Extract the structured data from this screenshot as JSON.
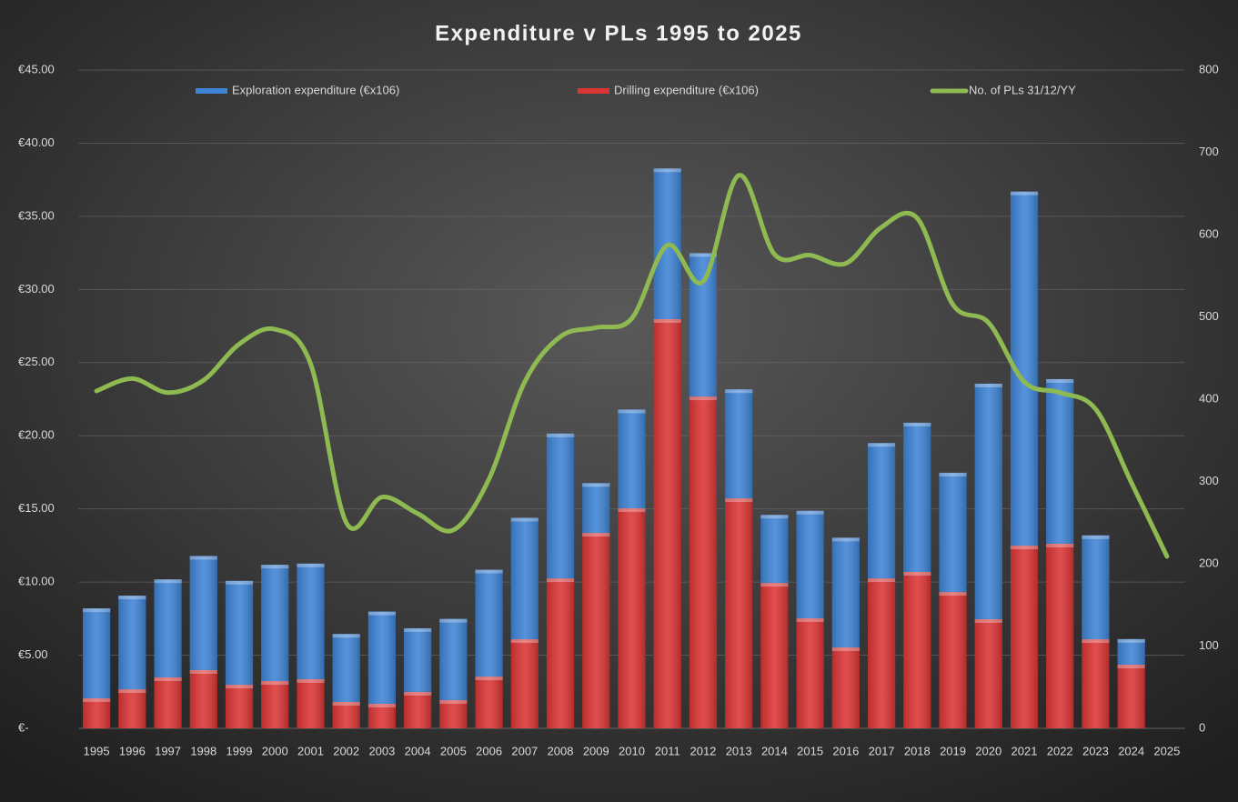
{
  "chart_data": {
    "type": "bar",
    "title": "Expenditure v PLs 1995 to 2025",
    "categories": [
      "1995",
      "1996",
      "1997",
      "1998",
      "1999",
      "2000",
      "2001",
      "2002",
      "2003",
      "2004",
      "2005",
      "2006",
      "2007",
      "2008",
      "2009",
      "2010",
      "2011",
      "2012",
      "2013",
      "2014",
      "2015",
      "2016",
      "2017",
      "2018",
      "2019",
      "2020",
      "2021",
      "2022",
      "2023",
      "2024",
      "2025"
    ],
    "series": [
      {
        "name": "Exploration expenditure (€x106)",
        "type": "bar",
        "color": "#3f84d6",
        "values": [
          6.15,
          6.4,
          6.7,
          7.8,
          7.1,
          7.95,
          7.9,
          4.65,
          6.3,
          4.35,
          5.55,
          7.3,
          8.3,
          9.9,
          3.4,
          6.75,
          10.3,
          9.8,
          7.45,
          4.65,
          7.35,
          7.5,
          9.25,
          10.2,
          8.15,
          16.1,
          24.2,
          11.25,
          7.1,
          1.75,
          null
        ]
      },
      {
        "name": "Drilling expenditure (€x106)",
        "type": "bar",
        "color": "#dc3535",
        "values": [
          2.05,
          2.67,
          3.48,
          3.98,
          2.98,
          3.23,
          3.36,
          1.8,
          1.68,
          2.49,
          1.93,
          3.54,
          6.09,
          10.25,
          13.36,
          15.04,
          27.97,
          22.68,
          15.72,
          9.94,
          7.52,
          5.53,
          10.25,
          10.69,
          9.32,
          7.46,
          12.49,
          12.62,
          6.09,
          4.35,
          null
        ]
      },
      {
        "name": "No. of PLs 31/12/YY",
        "type": "line",
        "axis": "y2",
        "color": "#8fba52",
        "values": [
          410,
          425,
          408,
          423,
          467,
          485,
          443,
          250,
          281,
          261,
          241,
          303,
          421,
          476,
          487,
          498,
          587,
          543,
          672,
          576,
          575,
          565,
          609,
          620,
          515,
          493,
          421,
          408,
          388,
          299,
          209
        ]
      }
    ],
    "ylim": [
      0,
      45
    ],
    "yticks": [
      {
        "value": 0,
        "label": "€-"
      },
      {
        "value": 5,
        "label": "€5.00"
      },
      {
        "value": 10,
        "label": "€10.00"
      },
      {
        "value": 15,
        "label": "€15.00"
      },
      {
        "value": 20,
        "label": "€20.00"
      },
      {
        "value": 25,
        "label": "€25.00"
      },
      {
        "value": 30,
        "label": "€30.00"
      },
      {
        "value": 35,
        "label": "€35.00"
      },
      {
        "value": 40,
        "label": "€40.00"
      },
      {
        "value": 45,
        "label": "€45.00"
      }
    ],
    "y2lim": [
      0,
      800
    ],
    "y2ticks": [
      0,
      100,
      200,
      300,
      400,
      500,
      600,
      700,
      800
    ],
    "grid": true,
    "legend": "top",
    "stacked": true
  }
}
